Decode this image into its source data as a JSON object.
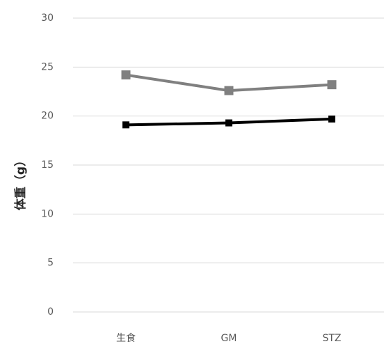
{
  "chart_data": {
    "type": "line",
    "title": "",
    "xlabel": "",
    "ylabel": "体重（g）",
    "ylim": [
      0,
      30
    ],
    "yticks": [
      0,
      5,
      10,
      15,
      20,
      25,
      30
    ],
    "grid": true,
    "legend": "none",
    "categories": [
      "生食",
      "GM",
      "STZ"
    ],
    "series": [
      {
        "values": [
          24.2,
          22.6,
          23.2
        ],
        "color": "#808080"
      },
      {
        "values": [
          19.1,
          19.3,
          19.7
        ],
        "color": "#000000"
      }
    ]
  }
}
